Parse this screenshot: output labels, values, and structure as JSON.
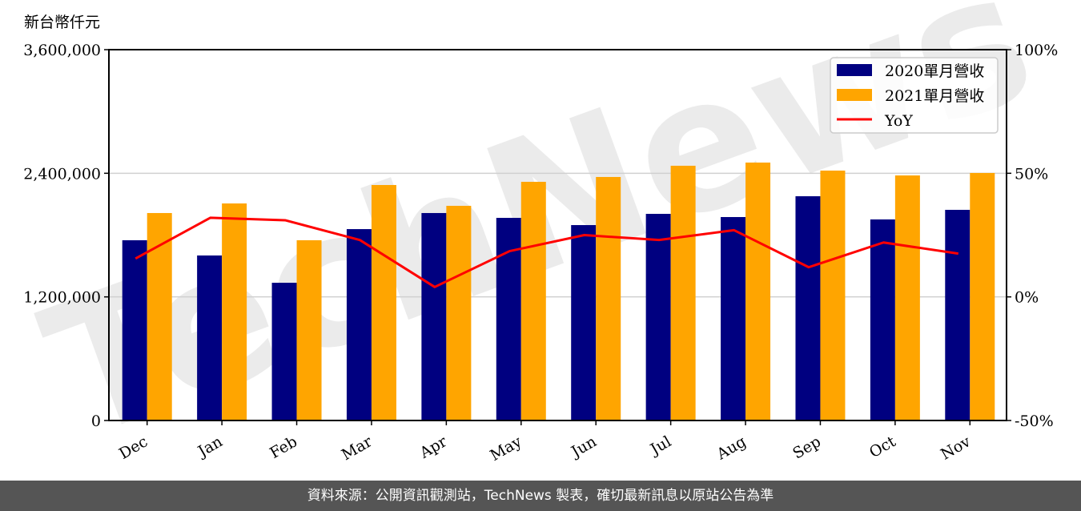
{
  "chart_data": {
    "type": "bar",
    "title": "",
    "ylabel": "新台幣仟元",
    "xlabel": "",
    "ylim": [
      0,
      3600000
    ],
    "y2lim": [
      -50,
      100
    ],
    "yticks": [
      "0",
      "1,200,000",
      "2,400,000",
      "3,600,000"
    ],
    "y2ticks": [
      "-50%",
      "0%",
      "50%",
      "100%"
    ],
    "grid": "horizontal",
    "legend_position": "upper right",
    "categories": [
      "Dec",
      "Jan",
      "Feb",
      "Mar",
      "Apr",
      "May",
      "Jun",
      "Jul",
      "Aug",
      "Sep",
      "Oct",
      "Nov"
    ],
    "series": [
      {
        "name": "2020單月營收",
        "type": "bar",
        "color": "#000080",
        "values": [
          1750000,
          1602000,
          1337000,
          1858000,
          2014000,
          1967000,
          1897000,
          2006000,
          1975000,
          2177000,
          1952000,
          2045000
        ]
      },
      {
        "name": "2021單月營收",
        "type": "bar",
        "color": "#FFA500",
        "values": [
          2014000,
          2107000,
          1750000,
          2286000,
          2084000,
          2317000,
          2364000,
          2473000,
          2504000,
          2426000,
          2379000,
          2403000
        ]
      },
      {
        "name": "YoY",
        "type": "line",
        "axis": "right",
        "color": "#FF0000",
        "values": [
          15.5,
          32,
          31,
          23,
          4,
          18.5,
          25,
          23,
          27,
          12,
          22,
          17.5
        ]
      }
    ]
  },
  "watermark": "TechNews",
  "footer": "資料來源：公開資訊觀測站，TechNews 製表，確切最新訊息以原站公告為準"
}
